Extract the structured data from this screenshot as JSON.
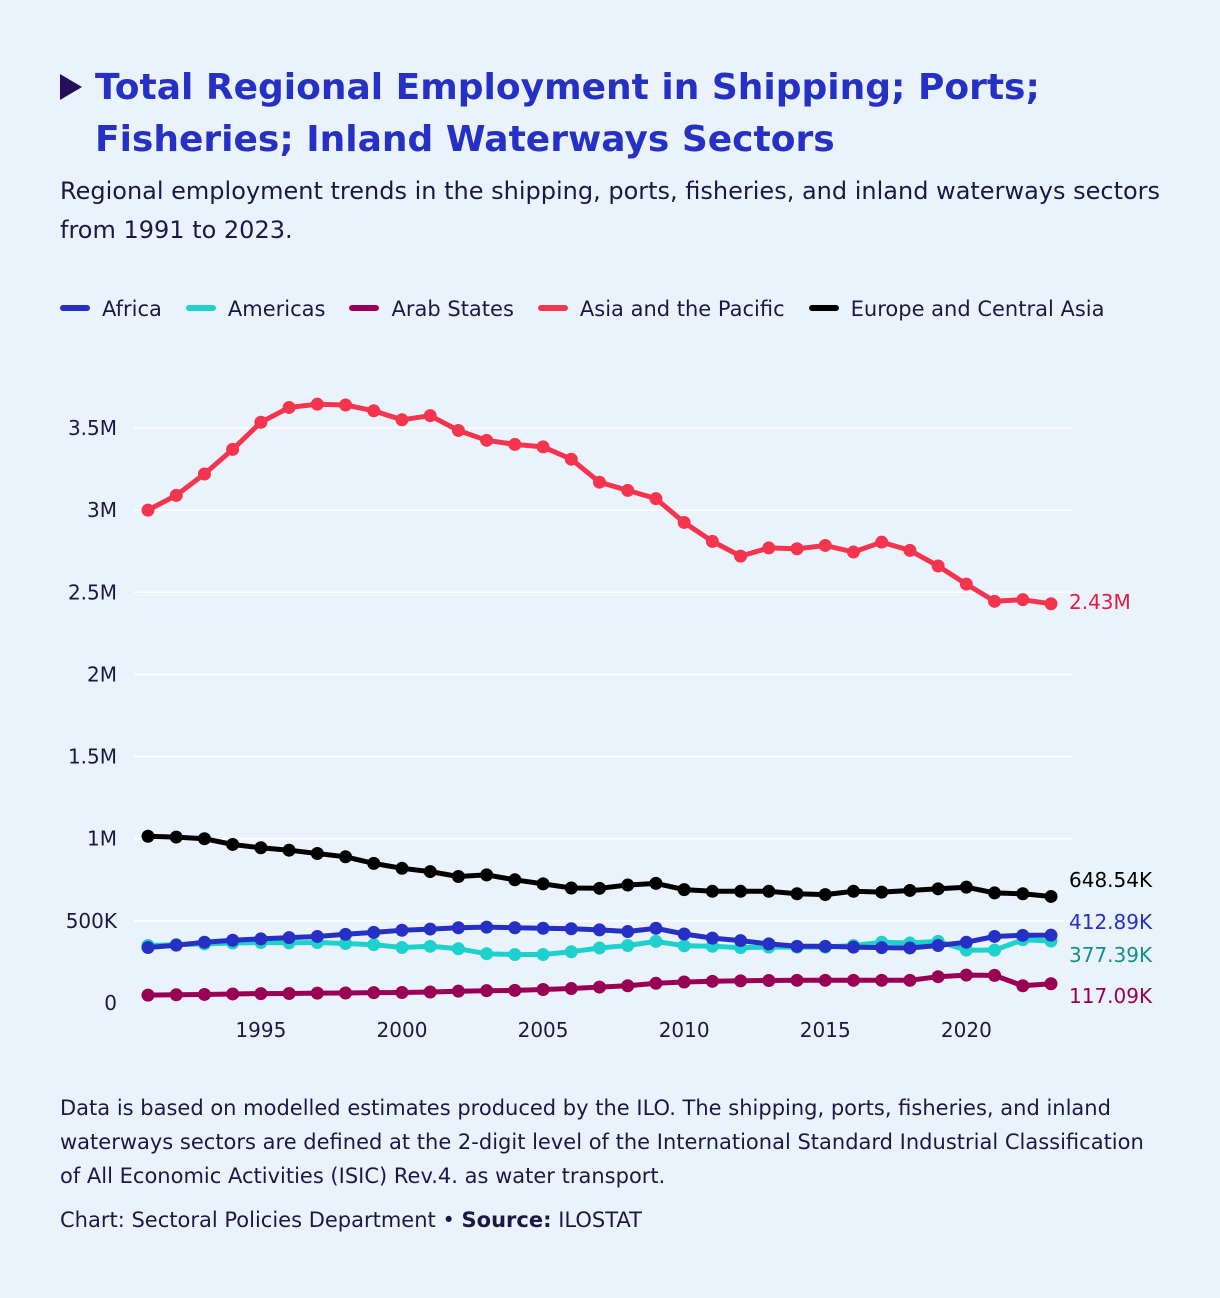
{
  "header": {
    "title": "Total Regional Employment in Shipping; Ports; Fisheries; Inland Waterways Sectors",
    "subtitle": "Regional employment trends in the shipping, ports, fisheries, and inland waterways sectors from 1991 to 2023."
  },
  "footer": {
    "notes": "Data is based on modelled estimates produced by the ILO. The shipping, ports, fisheries, and inland waterways sectors are defined at the 2-digit level of the International Standard Industrial Classification of All Economic Activities (ISIC) Rev.4. as water transport.",
    "chart_credit": "Chart: Sectoral Policies Department",
    "separator": "•",
    "source_label": "Source:",
    "source_value": "ILOSTAT"
  },
  "chart_data": {
    "type": "line",
    "title": "Total Regional Employment in Shipping; Ports; Fisheries; Inland Waterways Sectors",
    "xlabel": "",
    "ylabel": "",
    "xlim": [
      1991,
      2023
    ],
    "ylim": [
      0,
      3600000
    ],
    "grid": true,
    "legend_position": "top",
    "x_ticks": [
      1995,
      2000,
      2005,
      2010,
      2015,
      2020
    ],
    "y_ticks": [
      0,
      500000,
      1000000,
      1500000,
      2000000,
      2500000,
      3000000,
      3500000
    ],
    "y_tick_labels": [
      "0",
      "500K",
      "1M",
      "1.5M",
      "2M",
      "2.5M",
      "3M",
      "3.5M"
    ],
    "x": [
      1991,
      1992,
      1993,
      1994,
      1995,
      1996,
      1997,
      1998,
      1999,
      2000,
      2001,
      2002,
      2003,
      2004,
      2005,
      2006,
      2007,
      2008,
      2009,
      2010,
      2011,
      2012,
      2013,
      2014,
      2015,
      2016,
      2017,
      2018,
      2019,
      2020,
      2021,
      2022,
      2023
    ],
    "series": [
      {
        "name": "Africa",
        "color": "#2630c4",
        "end_label": "412.89K",
        "end_label_color": "#2630c4",
        "values": [
          338000,
          352000,
          370000,
          382000,
          390000,
          398000,
          405000,
          418000,
          430000,
          443000,
          450000,
          458000,
          462000,
          458000,
          455000,
          452000,
          445000,
          435000,
          455000,
          420000,
          395000,
          380000,
          360000,
          345000,
          345000,
          340000,
          337000,
          335000,
          350000,
          370000,
          405000,
          412000,
          412890
        ]
      },
      {
        "name": "Americas",
        "color": "#1fd1cd",
        "end_label": "377.39K",
        "end_label_color": "#11918c",
        "values": [
          350000,
          355000,
          360000,
          365000,
          368000,
          366000,
          368000,
          362000,
          355000,
          338000,
          345000,
          330000,
          300000,
          295000,
          295000,
          312000,
          335000,
          350000,
          375000,
          348000,
          345000,
          337000,
          340000,
          340000,
          340000,
          350000,
          370000,
          365000,
          375000,
          322000,
          322000,
          385000,
          377390
        ]
      },
      {
        "name": "Arab States",
        "color": "#990055",
        "end_label": "117.09K",
        "end_label_color": "#990055",
        "values": [
          48000,
          50000,
          52000,
          55000,
          57000,
          58000,
          60000,
          61000,
          63000,
          64000,
          67000,
          72000,
          75000,
          77000,
          82000,
          88000,
          97000,
          105000,
          120000,
          128000,
          132000,
          135000,
          137000,
          138000,
          138000,
          138000,
          138000,
          138000,
          160000,
          170000,
          168000,
          105000,
          117090
        ]
      },
      {
        "name": "Asia and the Pacific",
        "color": "#f5344e",
        "end_label": "2.43M",
        "end_label_color": "#e31b3d",
        "values": [
          3000000,
          3090000,
          3220000,
          3370000,
          3535000,
          3625000,
          3645000,
          3640000,
          3605000,
          3550000,
          3575000,
          3485000,
          3425000,
          3400000,
          3385000,
          3310000,
          3170000,
          3120000,
          3070000,
          2925000,
          2810000,
          2720000,
          2770000,
          2765000,
          2785000,
          2745000,
          2805000,
          2755000,
          2660000,
          2550000,
          2445000,
          2455000,
          2430000
        ]
      },
      {
        "name": "Europe and Central Asia",
        "color": "#000000",
        "end_label": "648.54K",
        "end_label_color": "#000000",
        "values": [
          1015000,
          1010000,
          1000000,
          965000,
          945000,
          930000,
          910000,
          890000,
          850000,
          820000,
          800000,
          770000,
          780000,
          750000,
          725000,
          700000,
          698000,
          718000,
          728000,
          690000,
          680000,
          680000,
          680000,
          665000,
          660000,
          680000,
          675000,
          685000,
          695000,
          705000,
          670000,
          665000,
          648540
        ]
      }
    ]
  }
}
